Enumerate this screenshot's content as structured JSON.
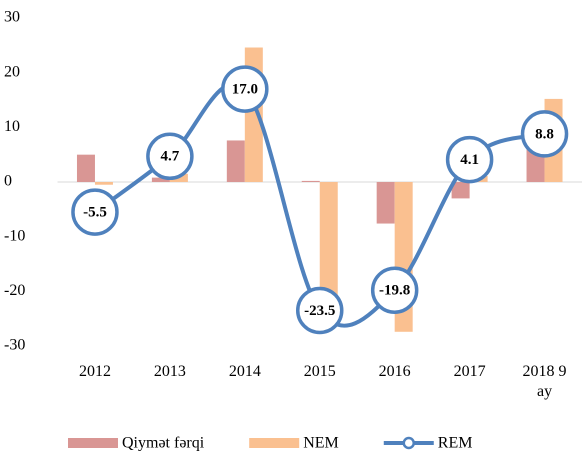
{
  "chart_data": {
    "type": "bar-line",
    "categories": [
      "2012",
      "2013",
      "2014",
      "2015",
      "2016",
      "2017",
      "2018 9 ay"
    ],
    "series": [
      {
        "name": "Qiymət fərqi",
        "type": "bar",
        "color": "#d99694",
        "values": [
          5.0,
          0.8,
          7.6,
          0.2,
          -7.6,
          -3.0,
          6.4
        ]
      },
      {
        "name": "NEM",
        "type": "bar",
        "color": "#fac090",
        "values": [
          -0.5,
          1.5,
          24.6,
          -23.3,
          -27.4,
          1.1,
          15.2
        ]
      },
      {
        "name": "REM",
        "type": "line",
        "color": "#4f81bd",
        "values": [
          -5.5,
          4.7,
          17.0,
          -23.5,
          -19.8,
          4.1,
          8.8
        ],
        "value_labels": [
          "-5.5",
          "4.7",
          "17.0",
          "-23.5",
          "-19.8",
          "4.1",
          "8.8"
        ]
      }
    ],
    "ylim": [
      -30,
      30
    ],
    "yticks": [
      -30,
      -20,
      -10,
      0,
      10,
      20,
      30
    ],
    "grid": false
  }
}
